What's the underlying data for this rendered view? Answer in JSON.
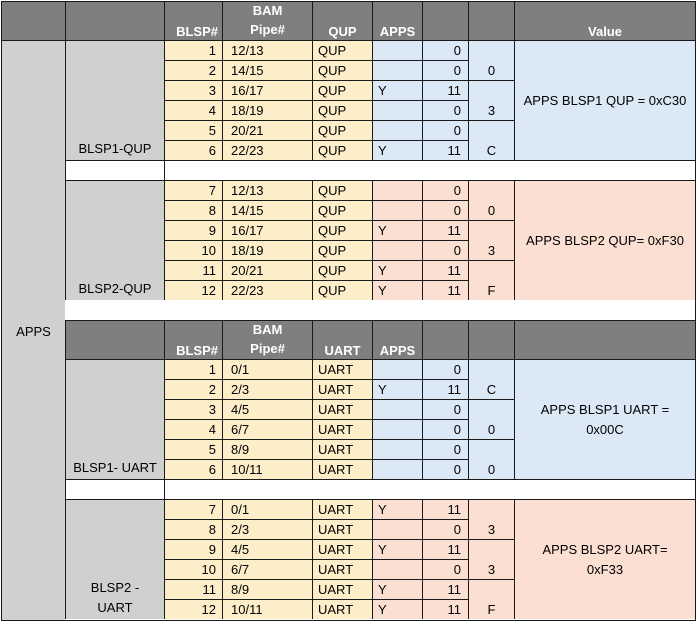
{
  "headers": {
    "blsp": "BLSP#",
    "bam": "BAM Pipe#",
    "qup": "QUP",
    "uart": "UART",
    "apps": "APPS",
    "value": "Value"
  },
  "apps_label": "APPS",
  "colors": {
    "header": "#7f7f7f",
    "group": "#d0d0d0",
    "cell": "#fdeeca",
    "blue": "#dbe9f7",
    "pink": "#fbdfd2"
  },
  "sections": [
    {
      "group": "BLSP1-QUP",
      "value": "APPS BLSP1 QUP = 0xC30",
      "tint": "blue",
      "nibbles": [
        "0",
        "3",
        "C"
      ],
      "rows": [
        {
          "blsp": "1",
          "pipe": "12/13",
          "type": "QUP",
          "apps": "",
          "num": "0"
        },
        {
          "blsp": "2",
          "pipe": "14/15",
          "type": "QUP",
          "apps": "",
          "num": "0"
        },
        {
          "blsp": "3",
          "pipe": "16/17",
          "type": "QUP",
          "apps": "Y",
          "num": "11"
        },
        {
          "blsp": "4",
          "pipe": "18/19",
          "type": "QUP",
          "apps": "",
          "num": "0"
        },
        {
          "blsp": "5",
          "pipe": "20/21",
          "type": "QUP",
          "apps": "",
          "num": "0"
        },
        {
          "blsp": "6",
          "pipe": "22/23",
          "type": "QUP",
          "apps": "Y",
          "num": "11"
        }
      ]
    },
    {
      "group": "BLSP2-QUP",
      "value": "APPS BLSP2 QUP= 0xF30",
      "tint": "pink",
      "nibbles": [
        "0",
        "3",
        "F"
      ],
      "rows": [
        {
          "blsp": "7",
          "pipe": "12/13",
          "type": "QUP",
          "apps": "",
          "num": "0"
        },
        {
          "blsp": "8",
          "pipe": "14/15",
          "type": "QUP",
          "apps": "",
          "num": "0"
        },
        {
          "blsp": "9",
          "pipe": "16/17",
          "type": "QUP",
          "apps": "Y",
          "num": "11"
        },
        {
          "blsp": "10",
          "pipe": "18/19",
          "type": "QUP",
          "apps": "",
          "num": "0"
        },
        {
          "blsp": "11",
          "pipe": "20/21",
          "type": "QUP",
          "apps": "Y",
          "num": "11"
        },
        {
          "blsp": "12",
          "pipe": "22/23",
          "type": "QUP",
          "apps": "Y",
          "num": "11"
        }
      ]
    },
    {
      "group": "BLSP1- UART",
      "value": "APPS BLSP1 UART = 0x00C",
      "tint": "blue",
      "nibbles": [
        "C",
        "0",
        "0"
      ],
      "rows": [
        {
          "blsp": "1",
          "pipe": "0/1",
          "type": "UART",
          "apps": "",
          "num": "0"
        },
        {
          "blsp": "2",
          "pipe": "2/3",
          "type": "UART",
          "apps": "Y",
          "num": "11"
        },
        {
          "blsp": "3",
          "pipe": "4/5",
          "type": "UART",
          "apps": "",
          "num": "0"
        },
        {
          "blsp": "4",
          "pipe": "6/7",
          "type": "UART",
          "apps": "",
          "num": "0"
        },
        {
          "blsp": "5",
          "pipe": "8/9",
          "type": "UART",
          "apps": "",
          "num": "0"
        },
        {
          "blsp": "6",
          "pipe": "10/11",
          "type": "UART",
          "apps": "",
          "num": "0"
        }
      ]
    },
    {
      "group": "BLSP2 - UART",
      "value": "APPS BLSP2 UART= 0xF33",
      "tint": "pink",
      "nibbles": [
        "3",
        "3",
        "F"
      ],
      "rows": [
        {
          "blsp": "7",
          "pipe": "0/1",
          "type": "UART",
          "apps": "Y",
          "num": "11"
        },
        {
          "blsp": "8",
          "pipe": "2/3",
          "type": "UART",
          "apps": "",
          "num": "0"
        },
        {
          "blsp": "9",
          "pipe": "4/5",
          "type": "UART",
          "apps": "Y",
          "num": "11"
        },
        {
          "blsp": "10",
          "pipe": "6/7",
          "type": "UART",
          "apps": "",
          "num": "0"
        },
        {
          "blsp": "11",
          "pipe": "8/9",
          "type": "UART",
          "apps": "Y",
          "num": "11"
        },
        {
          "blsp": "12",
          "pipe": "10/11",
          "type": "UART",
          "apps": "Y",
          "num": "11"
        }
      ]
    }
  ]
}
